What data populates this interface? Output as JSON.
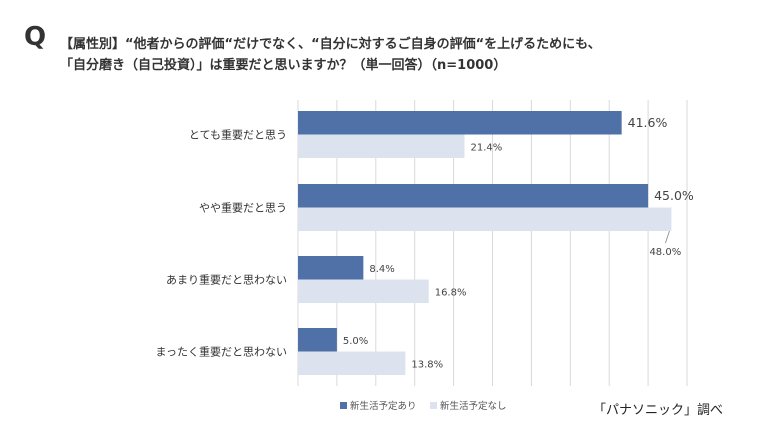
{
  "header": {
    "q_mark": "Q",
    "title_line1": "【属性別】“他者からの評価“だけでなく、“自分に対するご自身の評価“を上げるためにも、",
    "title_line2": "「自分磨き（自己投資）」は重要だと思いますか？（単一回答）（n=1000）"
  },
  "source": "「パナソニック」調べ",
  "colors": {
    "series1": "#5070a8",
    "series2": "#dde3ee",
    "grid": "#d9d9d9"
  },
  "chart_data": {
    "type": "bar",
    "orientation": "horizontal",
    "title": "【属性別】“他者からの評価“だけでなく、“自分に対するご自身の評価“を上げるためにも、「自分磨き（自己投資）」は重要だと思いますか？（単一回答）（n=1000）",
    "categories": [
      "とても重要だと思う",
      "やや重要だと思う",
      "あまり重要だと思わない",
      "まったく重要だと思わない"
    ],
    "series": [
      {
        "name": "新生活予定あり",
        "values": [
          41.6,
          45.0,
          8.4,
          5.0
        ],
        "labels": [
          "41.6%",
          "45.0%",
          "8.4%",
          "5.0%"
        ]
      },
      {
        "name": "新生活予定なし",
        "values": [
          21.4,
          48.0,
          16.8,
          13.8
        ],
        "labels": [
          "21.4%",
          "48.0%",
          "16.8%",
          "13.8%"
        ]
      }
    ],
    "xlim": [
      0,
      50
    ],
    "grid_step": 5,
    "grid": true,
    "legend": "bottom-center",
    "unit": "%"
  }
}
